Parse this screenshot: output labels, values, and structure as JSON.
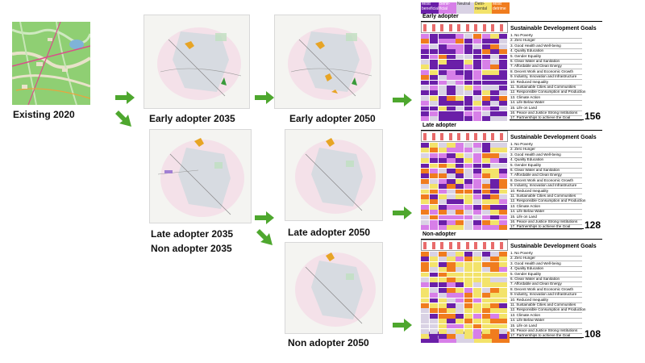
{
  "labels": {
    "existing": "Existing 2020",
    "early2035": "Early adopter 2035",
    "early2050": "Early adopter 2050",
    "late2035": "Late adopter 2035",
    "non2035": "Non adopter 2035",
    "late2050": "Late adopter 2050",
    "non2050": "Non adopter 2050"
  },
  "tables": [
    {
      "title": "Early adopter",
      "score": "156"
    },
    {
      "title": "Late adopter",
      "score": "128"
    },
    {
      "title": "Non-adopter",
      "score": "108"
    }
  ],
  "sdg_heading": "Sustainable Development Goals",
  "goals": [
    "1. No Poverty",
    "2. Zero Hunger",
    "3. Good Health and Well-being",
    "4. Quality Education",
    "5. Gender Equality",
    "6. Clean Water and Sanitation",
    "7. Affordable and Clean Energy",
    "8. Decent Work and Economic Growth",
    "9. Industry, Innovation and Infrastructure",
    "10. Reduced Inequality",
    "11. Sustainable Cities and Communities",
    "12. Responsible Consumption and Production",
    "13. Climate Action",
    "14. Life Below Water",
    "15. Life on Land",
    "16. Peace and Justice Strong Institutions",
    "17. Partnerships to achieve the Goal"
  ],
  "legend": {
    "most_beneficial": "Most beneficial",
    "beneficial": "Bene-ficial",
    "neutral": "Neutral",
    "detrimental": "Detri-mental",
    "most_detrimental": "Most detrime"
  },
  "colors": {
    "most_beneficial": "#6a1fa8",
    "beneficial": "#d77fe8",
    "neutral": "#d9d2e4",
    "detrimental": "#f3e36a",
    "most_detrimental": "#f07c1e",
    "arrow": "#4ea72e"
  }
}
